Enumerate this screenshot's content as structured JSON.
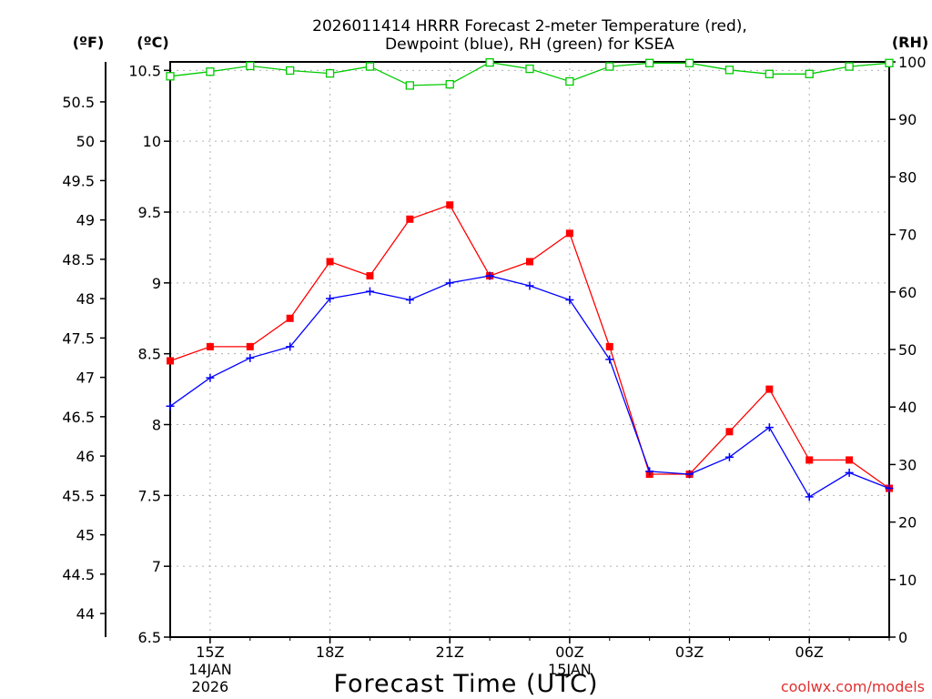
{
  "chart_data": {
    "type": "line",
    "title_lines": [
      "2026011414 HRRR Forecast 2-meter Temperature (red),",
      "Dewpoint (blue), RH (green) for KSEA"
    ],
    "xlabel": "Forecast Time (UTC)",
    "credit": "coolwx.com/models",
    "unit_labels": {
      "fahrenheit": "(ºF)",
      "celsius": "(ºC)",
      "rh": "(RH)"
    },
    "x_range": [
      0,
      18
    ],
    "celsius_range": [
      6.5,
      10.56
    ],
    "rh_range": [
      0,
      100
    ],
    "x_ticks": [
      {
        "x": 1,
        "label": "15Z",
        "sub": [
          "14JAN",
          "2026"
        ]
      },
      {
        "x": 4,
        "label": "18Z",
        "sub": []
      },
      {
        "x": 7,
        "label": "21Z",
        "sub": []
      },
      {
        "x": 10,
        "label": "00Z",
        "sub": [
          "15JAN"
        ]
      },
      {
        "x": 13,
        "label": "03Z",
        "sub": []
      },
      {
        "x": 16,
        "label": "06Z",
        "sub": []
      }
    ],
    "celsius_ticks": [
      {
        "value": 6.5,
        "label": "6.5"
      },
      {
        "value": 7,
        "label": "7"
      },
      {
        "value": 7.5,
        "label": "7.5"
      },
      {
        "value": 8,
        "label": "8"
      },
      {
        "value": 8.5,
        "label": "8.5"
      },
      {
        "value": 9,
        "label": "9"
      },
      {
        "value": 9.5,
        "label": "9.5"
      },
      {
        "value": 10,
        "label": "10"
      },
      {
        "value": 10.5,
        "label": "10.5"
      }
    ],
    "fahrenheit_ticks": [
      {
        "value": 44,
        "label": "44"
      },
      {
        "value": 44.5,
        "label": "44.5"
      },
      {
        "value": 45,
        "label": "45"
      },
      {
        "value": 45.5,
        "label": "45.5"
      },
      {
        "value": 46,
        "label": "46"
      },
      {
        "value": 46.5,
        "label": "46.5"
      },
      {
        "value": 47,
        "label": "47"
      },
      {
        "value": 47.5,
        "label": "47.5"
      },
      {
        "value": 48,
        "label": "48"
      },
      {
        "value": 48.5,
        "label": "48.5"
      },
      {
        "value": 49,
        "label": "49"
      },
      {
        "value": 49.5,
        "label": "49.5"
      },
      {
        "value": 50,
        "label": "50"
      },
      {
        "value": 50.5,
        "label": "50.5"
      }
    ],
    "rh_ticks": [
      {
        "value": 0,
        "label": "0"
      },
      {
        "value": 10,
        "label": "10"
      },
      {
        "value": 20,
        "label": "20"
      },
      {
        "value": 30,
        "label": "30"
      },
      {
        "value": 40,
        "label": "40"
      },
      {
        "value": 50,
        "label": "50"
      },
      {
        "value": 60,
        "label": "60"
      },
      {
        "value": 70,
        "label": "70"
      },
      {
        "value": 80,
        "label": "80"
      },
      {
        "value": 90,
        "label": "90"
      },
      {
        "value": 100,
        "label": "100"
      }
    ],
    "x": [
      0,
      1,
      2,
      3,
      4,
      5,
      6,
      7,
      8,
      9,
      10,
      11,
      12,
      13,
      14,
      15,
      16,
      17,
      18
    ],
    "series": [
      {
        "name": "Temperature",
        "color": "#ff0000",
        "marker": "square",
        "axis": "celsius",
        "values": [
          8.45,
          8.55,
          8.55,
          8.75,
          9.15,
          9.05,
          9.45,
          9.55,
          9.05,
          9.15,
          9.35,
          8.55,
          7.65,
          7.65,
          7.95,
          8.25,
          7.75,
          7.75,
          7.55
        ]
      },
      {
        "name": "Dewpoint",
        "color": "#0000ff",
        "marker": "plus",
        "axis": "celsius",
        "values": [
          8.13,
          8.33,
          8.47,
          8.55,
          8.89,
          8.94,
          8.88,
          9.0,
          9.05,
          8.98,
          8.88,
          8.46,
          7.67,
          7.65,
          7.77,
          7.98,
          7.49,
          7.66,
          7.55
        ]
      },
      {
        "name": "RH",
        "color": "#00cc00",
        "marker": "open-square",
        "axis": "rh",
        "values": [
          97.5,
          98.3,
          99.3,
          98.5,
          98.0,
          99.2,
          95.9,
          96.1,
          99.9,
          98.8,
          96.6,
          99.2,
          99.8,
          99.8,
          98.6,
          97.9,
          97.9,
          99.2,
          99.8
        ]
      }
    ]
  }
}
